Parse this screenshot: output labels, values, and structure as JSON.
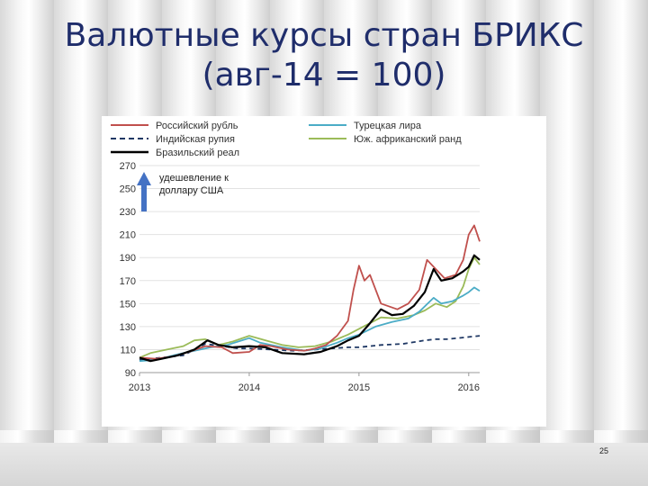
{
  "slide": {
    "title_line1": "Валютные курсы стран БРИКС",
    "title_line2": "(авг-14 = 100)",
    "page_number": "25"
  },
  "chart_data": {
    "type": "line",
    "x_ticks": [
      "2013",
      "2014",
      "2015",
      "2016"
    ],
    "x_range": [
      2013.0,
      2016.1
    ],
    "ylim": [
      90,
      270
    ],
    "y_ticks": [
      90,
      110,
      130,
      150,
      170,
      190,
      210,
      230,
      250,
      270
    ],
    "grid": "horizontal",
    "legend_placement": "top",
    "annotation": {
      "text_line1": "удешевление  к",
      "text_line2": "доллару США",
      "arrow_color": "#4472c4"
    },
    "series": [
      {
        "name": "Российский рубль",
        "color": "#c0504d",
        "style": "solid",
        "points": [
          [
            2013.0,
            103
          ],
          [
            2013.15,
            102
          ],
          [
            2013.3,
            104
          ],
          [
            2013.45,
            108
          ],
          [
            2013.6,
            113
          ],
          [
            2013.75,
            112
          ],
          [
            2013.85,
            107
          ],
          [
            2014.0,
            108
          ],
          [
            2014.1,
            114
          ],
          [
            2014.2,
            113
          ],
          [
            2014.35,
            110
          ],
          [
            2014.5,
            109
          ],
          [
            2014.6,
            111
          ],
          [
            2014.7,
            114
          ],
          [
            2014.8,
            122
          ],
          [
            2014.9,
            135
          ],
          [
            2014.95,
            162
          ],
          [
            2015.0,
            183
          ],
          [
            2015.05,
            170
          ],
          [
            2015.1,
            175
          ],
          [
            2015.2,
            150
          ],
          [
            2015.35,
            145
          ],
          [
            2015.45,
            150
          ],
          [
            2015.55,
            162
          ],
          [
            2015.62,
            188
          ],
          [
            2015.7,
            180
          ],
          [
            2015.78,
            172
          ],
          [
            2015.88,
            175
          ],
          [
            2015.95,
            188
          ],
          [
            2016.0,
            210
          ],
          [
            2016.05,
            218
          ],
          [
            2016.1,
            204
          ]
        ]
      },
      {
        "name": "Индийская рупия",
        "color": "#1f3864",
        "style": "dashed",
        "points": [
          [
            2013.0,
            101
          ],
          [
            2013.2,
            103
          ],
          [
            2013.4,
            105
          ],
          [
            2013.6,
            115
          ],
          [
            2013.75,
            113
          ],
          [
            2013.9,
            111
          ],
          [
            2014.0,
            111
          ],
          [
            2014.2,
            110
          ],
          [
            2014.4,
            109
          ],
          [
            2014.6,
            110
          ],
          [
            2014.75,
            111
          ],
          [
            2014.9,
            112
          ],
          [
            2015.0,
            112
          ],
          [
            2015.2,
            114
          ],
          [
            2015.4,
            115
          ],
          [
            2015.6,
            118
          ],
          [
            2015.7,
            119
          ],
          [
            2015.8,
            119
          ],
          [
            2015.9,
            120
          ],
          [
            2016.0,
            121
          ],
          [
            2016.1,
            122
          ]
        ]
      },
      {
        "name": "Бразильский реал",
        "color": "#000000",
        "style": "solid",
        "points": [
          [
            2013.0,
            103
          ],
          [
            2013.1,
            100
          ],
          [
            2013.2,
            102
          ],
          [
            2013.35,
            105
          ],
          [
            2013.5,
            110
          ],
          [
            2013.62,
            118
          ],
          [
            2013.72,
            114
          ],
          [
            2013.85,
            112
          ],
          [
            2014.0,
            113
          ],
          [
            2014.15,
            112
          ],
          [
            2014.3,
            107
          ],
          [
            2014.5,
            106
          ],
          [
            2014.65,
            108
          ],
          [
            2014.8,
            113
          ],
          [
            2014.9,
            118
          ],
          [
            2015.0,
            122
          ],
          [
            2015.1,
            133
          ],
          [
            2015.2,
            145
          ],
          [
            2015.3,
            140
          ],
          [
            2015.4,
            141
          ],
          [
            2015.5,
            148
          ],
          [
            2015.6,
            160
          ],
          [
            2015.68,
            180
          ],
          [
            2015.75,
            170
          ],
          [
            2015.85,
            172
          ],
          [
            2015.95,
            178
          ],
          [
            2016.0,
            182
          ],
          [
            2016.05,
            192
          ],
          [
            2016.1,
            188
          ]
        ]
      },
      {
        "name": "Турецкая лира",
        "color": "#4bacc6",
        "style": "solid",
        "points": [
          [
            2013.0,
            100
          ],
          [
            2013.15,
            101
          ],
          [
            2013.35,
            106
          ],
          [
            2013.5,
            109
          ],
          [
            2013.65,
            112
          ],
          [
            2013.8,
            114
          ],
          [
            2014.0,
            120
          ],
          [
            2014.1,
            116
          ],
          [
            2014.3,
            112
          ],
          [
            2014.5,
            109
          ],
          [
            2014.65,
            111
          ],
          [
            2014.8,
            116
          ],
          [
            2014.9,
            120
          ],
          [
            2015.0,
            123
          ],
          [
            2015.15,
            130
          ],
          [
            2015.3,
            134
          ],
          [
            2015.45,
            137
          ],
          [
            2015.55,
            143
          ],
          [
            2015.68,
            155
          ],
          [
            2015.75,
            150
          ],
          [
            2015.85,
            152
          ],
          [
            2015.95,
            157
          ],
          [
            2016.0,
            160
          ],
          [
            2016.05,
            164
          ],
          [
            2016.1,
            161
          ]
        ]
      },
      {
        "name": "Юж. африканский ранд",
        "color": "#9bbb59",
        "style": "solid",
        "points": [
          [
            2013.0,
            103
          ],
          [
            2013.1,
            107
          ],
          [
            2013.25,
            110
          ],
          [
            2013.4,
            113
          ],
          [
            2013.5,
            118
          ],
          [
            2013.6,
            119
          ],
          [
            2013.72,
            114
          ],
          [
            2013.85,
            117
          ],
          [
            2014.0,
            122
          ],
          [
            2014.15,
            118
          ],
          [
            2014.3,
            114
          ],
          [
            2014.45,
            112
          ],
          [
            2014.6,
            113
          ],
          [
            2014.75,
            117
          ],
          [
            2014.9,
            123
          ],
          [
            2015.0,
            128
          ],
          [
            2015.1,
            133
          ],
          [
            2015.2,
            138
          ],
          [
            2015.35,
            137
          ],
          [
            2015.5,
            140
          ],
          [
            2015.6,
            144
          ],
          [
            2015.7,
            150
          ],
          [
            2015.8,
            147
          ],
          [
            2015.88,
            152
          ],
          [
            2015.95,
            165
          ],
          [
            2016.0,
            180
          ],
          [
            2016.05,
            190
          ],
          [
            2016.1,
            184
          ]
        ]
      }
    ]
  }
}
